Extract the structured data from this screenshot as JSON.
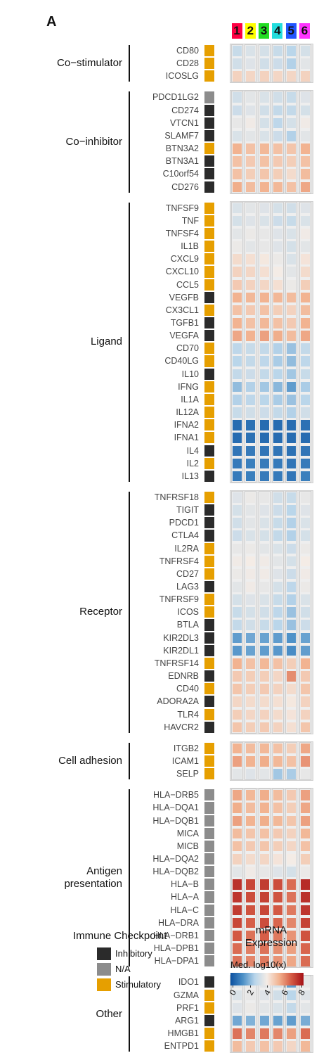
{
  "panel_letter": "A",
  "clusters": [
    {
      "label": "1",
      "color": "#ff0044"
    },
    {
      "label": "2",
      "color": "#ffff00"
    },
    {
      "label": "3",
      "color": "#22dd22"
    },
    {
      "label": "4",
      "color": "#22dddd"
    },
    {
      "label": "5",
      "color": "#2255ff"
    },
    {
      "label": "6",
      "color": "#ff33ff"
    }
  ],
  "type_colors": {
    "Inhibitory": "#2b2b2b",
    "N/A": "#8c8c8c",
    "Stimulatory": "#e69f00"
  },
  "legend_type": {
    "title": "Immune Checkpoint",
    "items": [
      {
        "label": "Inhibitory",
        "color": "#2b2b2b"
      },
      {
        "label": "N/A",
        "color": "#8c8c8c"
      },
      {
        "label": "Stimulatory",
        "color": "#e69f00"
      }
    ]
  },
  "legend_color": {
    "title_line1": "mRNA",
    "title_line2": "Expression",
    "subtitle": "Med. log10(x)",
    "ticks": [
      "0",
      "2",
      "4",
      "6",
      "8"
    ],
    "colors": [
      "#0b50a0",
      "#4a8ec6",
      "#b8d5ea",
      "#f4ece6",
      "#f2b28f",
      "#d45a44",
      "#a50f15"
    ]
  },
  "chart_data": {
    "type": "heatmap",
    "value_range": [
      0,
      8
    ],
    "columns": [
      "1",
      "2",
      "3",
      "4",
      "5",
      "6"
    ],
    "groups": [
      {
        "label_lines": [
          "Co−stimulator"
        ],
        "genes": [
          {
            "name": "CD80",
            "type": "Stimulatory",
            "values": [
              3.0,
              3.4,
              3.3,
              3.0,
              2.7,
              3.3
            ]
          },
          {
            "name": "CD28",
            "type": "Stimulatory",
            "values": [
              3.2,
              3.5,
              3.2,
              3.1,
              2.6,
              3.6
            ]
          },
          {
            "name": "ICOSLG",
            "type": "Stimulatory",
            "values": [
              4.6,
              4.5,
              4.6,
              4.5,
              4.5,
              4.6
            ]
          }
        ]
      },
      {
        "label_lines": [
          "Co−inhibitor"
        ],
        "genes": [
          {
            "name": "PDCD1LG2",
            "type": "N/A",
            "values": [
              3.2,
              3.6,
              3.4,
              3.2,
              3.0,
              3.5
            ]
          },
          {
            "name": "CD274",
            "type": "Inhibitory",
            "values": [
              3.1,
              3.5,
              3.2,
              2.9,
              2.9,
              3.3
            ]
          },
          {
            "name": "VTCN1",
            "type": "Inhibitory",
            "values": [
              3.7,
              3.9,
              3.3,
              2.8,
              3.3,
              3.9
            ]
          },
          {
            "name": "SLAMF7",
            "type": "Inhibitory",
            "values": [
              3.4,
              3.6,
              3.4,
              3.1,
              2.6,
              3.6
            ]
          },
          {
            "name": "BTN3A2",
            "type": "Stimulatory",
            "values": [
              5.3,
              5.0,
              5.2,
              5.0,
              4.9,
              5.3
            ]
          },
          {
            "name": "BTN3A1",
            "type": "Inhibitory",
            "values": [
              5.0,
              4.8,
              5.0,
              4.8,
              4.7,
              5.0
            ]
          },
          {
            "name": "C10orf54",
            "type": "Inhibitory",
            "values": [
              5.0,
              4.7,
              4.9,
              4.7,
              4.4,
              5.1
            ]
          },
          {
            "name": "CD276",
            "type": "Inhibitory",
            "values": [
              5.4,
              5.1,
              5.3,
              5.2,
              5.0,
              5.5
            ]
          }
        ]
      },
      {
        "label_lines": [
          "Ligand"
        ],
        "genes": [
          {
            "name": "TNFSF9",
            "type": "Stimulatory",
            "values": [
              3.4,
              3.6,
              3.5,
              3.3,
              3.2,
              3.5
            ]
          },
          {
            "name": "TNF",
            "type": "Stimulatory",
            "values": [
              3.3,
              3.5,
              3.4,
              3.1,
              3.0,
              3.4
            ]
          },
          {
            "name": "TNFSF4",
            "type": "Stimulatory",
            "values": [
              3.6,
              3.8,
              3.7,
              3.5,
              3.4,
              3.9
            ]
          },
          {
            "name": "IL1B",
            "type": "Stimulatory",
            "values": [
              3.8,
              3.6,
              3.7,
              3.5,
              3.3,
              3.6
            ]
          },
          {
            "name": "CXCL9",
            "type": "Stimulatory",
            "values": [
              4.4,
              4.3,
              4.1,
              3.8,
              3.4,
              4.2
            ]
          },
          {
            "name": "CXCL10",
            "type": "Stimulatory",
            "values": [
              4.6,
              4.5,
              4.3,
              4.0,
              3.6,
              4.4
            ]
          },
          {
            "name": "CCL5",
            "type": "Stimulatory",
            "values": [
              4.8,
              4.6,
              4.5,
              4.3,
              3.8,
              4.7
            ]
          },
          {
            "name": "VEGFB",
            "type": "Inhibitory",
            "values": [
              5.3,
              5.2,
              5.3,
              5.2,
              5.1,
              5.3
            ]
          },
          {
            "name": "CX3CL1",
            "type": "Stimulatory",
            "values": [
              5.0,
              4.8,
              5.0,
              4.7,
              4.6,
              5.1
            ]
          },
          {
            "name": "TGFB1",
            "type": "Inhibitory",
            "values": [
              5.3,
              5.0,
              5.2,
              5.0,
              4.8,
              5.3
            ]
          },
          {
            "name": "VEGFA",
            "type": "Inhibitory",
            "values": [
              5.5,
              5.3,
              5.6,
              5.4,
              5.1,
              5.5
            ]
          },
          {
            "name": "CD70",
            "type": "Stimulatory",
            "values": [
              2.8,
              3.0,
              2.9,
              2.6,
              2.3,
              2.9
            ]
          },
          {
            "name": "CD40LG",
            "type": "Stimulatory",
            "values": [
              2.7,
              2.9,
              2.8,
              2.5,
              2.2,
              2.8
            ]
          },
          {
            "name": "IL10",
            "type": "Inhibitory",
            "values": [
              2.9,
              3.1,
              2.9,
              2.7,
              2.4,
              3.0
            ]
          },
          {
            "name": "IFNG",
            "type": "Stimulatory",
            "values": [
              2.2,
              2.6,
              2.4,
              2.1,
              1.6,
              2.5
            ]
          },
          {
            "name": "IL1A",
            "type": "Stimulatory",
            "values": [
              2.6,
              2.8,
              2.7,
              2.5,
              2.3,
              2.7
            ]
          },
          {
            "name": "IL12A",
            "type": "Stimulatory",
            "values": [
              3.0,
              3.2,
              3.1,
              2.9,
              2.6,
              3.2
            ]
          },
          {
            "name": "IFNA2",
            "type": "Stimulatory",
            "values": [
              0.6,
              0.7,
              0.6,
              0.6,
              0.6,
              0.7
            ]
          },
          {
            "name": "IFNA1",
            "type": "Stimulatory",
            "values": [
              0.6,
              0.7,
              0.6,
              0.6,
              0.6,
              0.6
            ]
          },
          {
            "name": "IL4",
            "type": "Inhibitory",
            "values": [
              0.8,
              0.9,
              0.8,
              0.8,
              0.7,
              0.8
            ]
          },
          {
            "name": "IL2",
            "type": "Stimulatory",
            "values": [
              0.9,
              1.0,
              0.9,
              0.9,
              0.8,
              0.9
            ]
          },
          {
            "name": "IL13",
            "type": "Inhibitory",
            "values": [
              0.9,
              1.0,
              0.9,
              0.9,
              0.8,
              1.0
            ]
          }
        ]
      },
      {
        "label_lines": [
          "Receptor"
        ],
        "genes": [
          {
            "name": "TNFRSF18",
            "type": "Stimulatory",
            "values": [
              3.5,
              3.8,
              3.7,
              3.2,
              3.0,
              3.7
            ]
          },
          {
            "name": "TIGIT",
            "type": "Inhibitory",
            "values": [
              3.3,
              3.6,
              3.5,
              3.1,
              2.7,
              3.5
            ]
          },
          {
            "name": "PDCD1",
            "type": "Inhibitory",
            "values": [
              3.2,
              3.6,
              3.4,
              3.0,
              2.6,
              3.4
            ]
          },
          {
            "name": "CTLA4",
            "type": "Inhibitory",
            "values": [
              3.1,
              3.4,
              3.3,
              2.9,
              2.6,
              3.3
            ]
          },
          {
            "name": "IL2RA",
            "type": "Stimulatory",
            "values": [
              3.7,
              3.8,
              3.6,
              3.4,
              3.1,
              3.8
            ]
          },
          {
            "name": "TNFRSF4",
            "type": "Stimulatory",
            "values": [
              3.9,
              4.0,
              3.9,
              3.6,
              3.3,
              4.0
            ]
          },
          {
            "name": "CD27",
            "type": "Stimulatory",
            "values": [
              3.8,
              3.9,
              3.9,
              3.5,
              3.1,
              3.9
            ]
          },
          {
            "name": "LAG3",
            "type": "Inhibitory",
            "values": [
              3.6,
              3.9,
              3.7,
              3.3,
              2.8,
              3.8
            ]
          },
          {
            "name": "TNFRSF9",
            "type": "Stimulatory",
            "values": [
              3.3,
              3.5,
              3.4,
              3.0,
              2.6,
              3.4
            ]
          },
          {
            "name": "ICOS",
            "type": "Stimulatory",
            "values": [
              3.0,
              3.3,
              3.2,
              2.8,
              2.3,
              3.2
            ]
          },
          {
            "name": "BTLA",
            "type": "Inhibitory",
            "values": [
              2.9,
              3.2,
              3.0,
              2.7,
              2.3,
              3.1
            ]
          },
          {
            "name": "KIR2DL3",
            "type": "Inhibitory",
            "values": [
              1.6,
              1.8,
              1.7,
              1.6,
              1.4,
              1.7
            ]
          },
          {
            "name": "KIR2DL1",
            "type": "Inhibitory",
            "values": [
              1.5,
              1.7,
              1.6,
              1.5,
              1.3,
              1.6
            ]
          },
          {
            "name": "TNFRSF14",
            "type": "Stimulatory",
            "values": [
              5.3,
              5.0,
              5.2,
              5.0,
              4.7,
              5.3
            ]
          },
          {
            "name": "EDNRB",
            "type": "Inhibitory",
            "values": [
              4.8,
              4.7,
              4.7,
              4.5,
              5.9,
              4.8
            ]
          },
          {
            "name": "CD40",
            "type": "Stimulatory",
            "values": [
              4.9,
              4.7,
              4.8,
              4.6,
              4.4,
              4.9
            ]
          },
          {
            "name": "ADORA2A",
            "type": "Inhibitory",
            "values": [
              4.5,
              4.4,
              4.4,
              4.3,
              4.1,
              4.6
            ]
          },
          {
            "name": "TLR4",
            "type": "Stimulatory",
            "values": [
              4.7,
              4.5,
              4.6,
              4.4,
              4.2,
              4.6
            ]
          },
          {
            "name": "HAVCR2",
            "type": "Inhibitory",
            "values": [
              4.9,
              4.7,
              4.8,
              4.6,
              4.3,
              4.9
            ]
          }
        ]
      },
      {
        "label_lines": [
          "Cell adhesion"
        ],
        "genes": [
          {
            "name": "ITGB2",
            "type": "Stimulatory",
            "values": [
              5.3,
              5.1,
              5.2,
              5.0,
              4.7,
              5.5
            ]
          },
          {
            "name": "ICAM1",
            "type": "Stimulatory",
            "values": [
              5.6,
              5.3,
              5.4,
              5.2,
              5.0,
              5.8
            ]
          },
          {
            "name": "SELP",
            "type": "Stimulatory",
            "values": [
              3.6,
              3.5,
              3.6,
              2.4,
              2.5,
              3.7
            ]
          }
        ]
      },
      {
        "label_lines": [
          "Antigen",
          "presentation"
        ],
        "genes": [
          {
            "name": "HLA−DRB5",
            "type": "N/A",
            "values": [
              5.5,
              5.2,
              5.4,
              5.1,
              4.8,
              5.6
            ]
          },
          {
            "name": "HLA−DQA1",
            "type": "N/A",
            "values": [
              5.4,
              5.1,
              5.3,
              5.0,
              4.7,
              5.5
            ]
          },
          {
            "name": "HLA−DQB1",
            "type": "N/A",
            "values": [
              5.6,
              5.3,
              5.4,
              5.2,
              4.9,
              5.6
            ]
          },
          {
            "name": "MICA",
            "type": "N/A",
            "values": [
              5.1,
              4.9,
              5.0,
              4.8,
              4.6,
              5.2
            ]
          },
          {
            "name": "MICB",
            "type": "N/A",
            "values": [
              5.0,
              4.8,
              4.9,
              4.7,
              4.5,
              5.0
            ]
          },
          {
            "name": "HLA−DQA2",
            "type": "N/A",
            "values": [
              4.6,
              4.4,
              4.5,
              4.2,
              4.0,
              4.7
            ]
          },
          {
            "name": "HLA−DQB2",
            "type": "N/A",
            "values": [
              3.6,
              3.9,
              3.7,
              3.5,
              3.3,
              3.8
            ]
          },
          {
            "name": "HLA−B",
            "type": "N/A",
            "values": [
              7.4,
              7.0,
              7.2,
              6.9,
              6.4,
              7.5
            ]
          },
          {
            "name": "HLA−A",
            "type": "N/A",
            "values": [
              7.3,
              6.9,
              7.1,
              6.8,
              6.3,
              7.4
            ]
          },
          {
            "name": "HLA−C",
            "type": "N/A",
            "values": [
              7.2,
              6.8,
              7.0,
              6.7,
              6.2,
              7.3
            ]
          },
          {
            "name": "HLA−DRA",
            "type": "N/A",
            "values": [
              7.0,
              6.6,
              6.9,
              6.5,
              6.0,
              7.1
            ]
          },
          {
            "name": "HLA−DRB1",
            "type": "N/A",
            "values": [
              6.7,
              6.3,
              6.6,
              6.2,
              5.8,
              6.8
            ]
          },
          {
            "name": "HLA−DPB1",
            "type": "N/A",
            "values": [
              6.4,
              6.1,
              6.3,
              5.9,
              5.6,
              6.5
            ]
          },
          {
            "name": "HLA−DPA1",
            "type": "N/A",
            "values": [
              6.3,
              6.0,
              6.2,
              5.8,
              5.5,
              6.4
            ]
          }
        ]
      },
      {
        "label_lines": [
          "Other"
        ],
        "genes": [
          {
            "name": "IDO1",
            "type": "Inhibitory",
            "values": [
              3.6,
              3.8,
              3.6,
              3.3,
              1.6,
              3.7
            ]
          },
          {
            "name": "GZMA",
            "type": "Stimulatory",
            "values": [
              3.4,
              3.7,
              3.5,
              3.2,
              2.7,
              3.5
            ]
          },
          {
            "name": "PRF1",
            "type": "Stimulatory",
            "values": [
              3.5,
              3.8,
              3.6,
              3.4,
              2.9,
              3.6
            ]
          },
          {
            "name": "ARG1",
            "type": "Inhibitory",
            "values": [
              1.8,
              2.0,
              1.8,
              1.7,
              1.6,
              1.9
            ]
          },
          {
            "name": "HMGB1",
            "type": "Stimulatory",
            "values": [
              6.3,
              6.0,
              6.2,
              6.0,
              5.6,
              6.4
            ]
          },
          {
            "name": "ENTPD1",
            "type": "Stimulatory",
            "values": [
              5.1,
              4.8,
              5.0,
              4.8,
              4.5,
              5.2
            ]
          }
        ]
      }
    ]
  }
}
